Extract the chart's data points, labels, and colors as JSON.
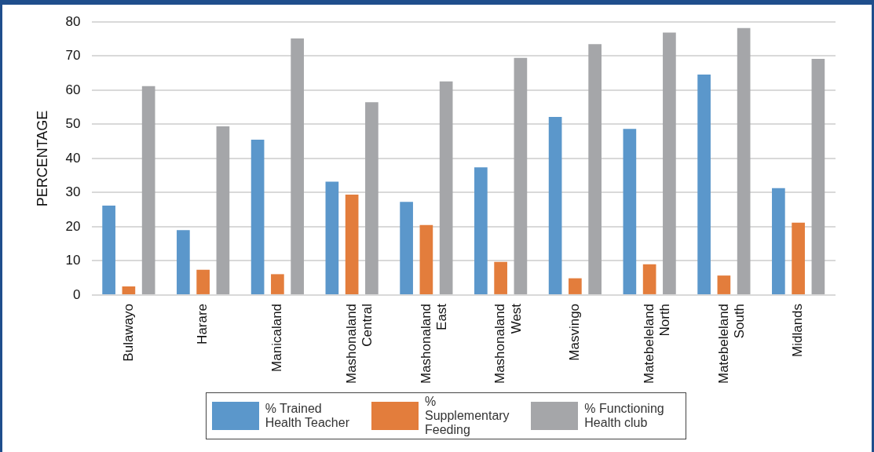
{
  "chart_data": {
    "type": "bar",
    "ylabel": "PERCENTAGE",
    "categories": [
      "Bulawayo",
      "Harare",
      "Manicaland",
      "Mashonaland Central",
      "Mashonaland East",
      "Mashonaland West",
      "Masvingo",
      "Matebeleland North",
      "Matebeleland South",
      "Midlands"
    ],
    "series": [
      {
        "name": "% Trained Health Teacher",
        "color": "#5b97cb",
        "values": [
          26.2,
          19,
          45.5,
          33.2,
          27.3,
          37.4,
          52.2,
          48.7,
          64.6,
          31.3
        ]
      },
      {
        "name": "% Supplementary Feeding",
        "color": "#e37d3c",
        "values": [
          2.5,
          7.4,
          6.1,
          29.4,
          20.5,
          9.7,
          4.9,
          9.0,
          5.7,
          21.2
        ]
      },
      {
        "name": "% Functioning Health club",
        "color": "#a5a6a9",
        "values": [
          61.2,
          49.4,
          75.2,
          56.5,
          62.6,
          69.5,
          73.5,
          76.9,
          78.2,
          69.2
        ]
      }
    ],
    "ylim": [
      0,
      80
    ],
    "yticks": [
      0,
      10,
      20,
      30,
      40,
      50,
      60,
      70,
      80
    ],
    "grid": "y",
    "legend": "bottom"
  }
}
